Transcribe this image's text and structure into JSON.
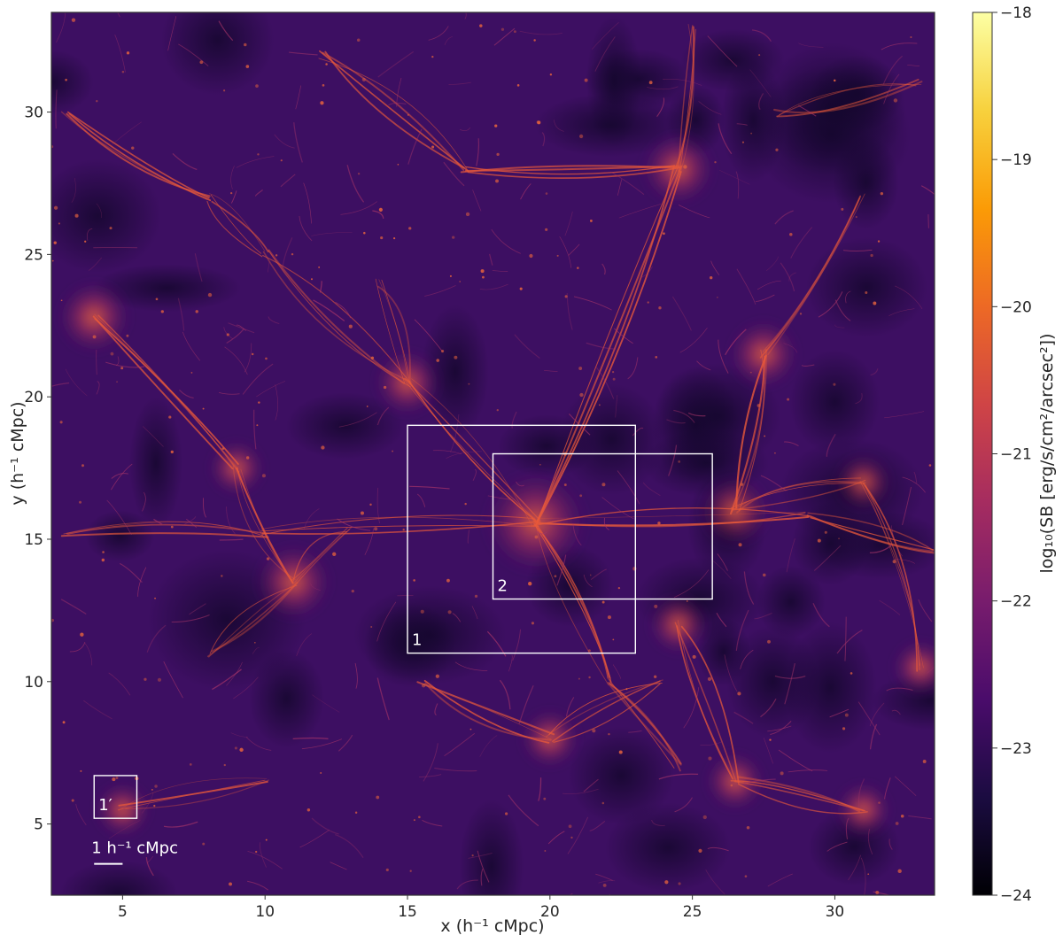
{
  "chart_data": {
    "type": "heatmap",
    "title": "",
    "xlabel": "x (h⁻¹ cMpc)",
    "ylabel": "y (h⁻¹ cMpc)",
    "xlim": [
      2.5,
      33.5
    ],
    "ylim": [
      2.5,
      33.5
    ],
    "xticks": [
      5,
      10,
      15,
      20,
      25,
      30
    ],
    "yticks": [
      5,
      10,
      15,
      20,
      25,
      30
    ],
    "colorbar": {
      "label": "log₁₀(SB [erg/s/cm²/arcsec²])",
      "range": [
        -24,
        -18
      ],
      "ticks": [
        -24,
        -23,
        -22,
        -21,
        -20,
        -19,
        -18
      ],
      "colormap": "inferno",
      "colors": [
        "#000004",
        "#1b0c41",
        "#4a0c6b",
        "#781c6d",
        "#a52c60",
        "#cf4446",
        "#ed6925",
        "#fb9b06",
        "#f7d13d",
        "#fcffa4"
      ]
    },
    "regions": [
      {
        "label": "1",
        "x": [
          15,
          23
        ],
        "y": [
          11,
          19
        ]
      },
      {
        "label": "2",
        "x": [
          18,
          25.7
        ],
        "y": [
          12.9,
          18
        ]
      },
      {
        "label": "1′",
        "x": [
          4,
          5.5
        ],
        "y": [
          5.2,
          6.7
        ]
      }
    ],
    "scale_bar": {
      "label": "1 h⁻¹ cMpc",
      "length": 1,
      "x": 4,
      "y": 3.6
    },
    "background_color": "#3d0f62",
    "filament_color": "#e8593a"
  }
}
